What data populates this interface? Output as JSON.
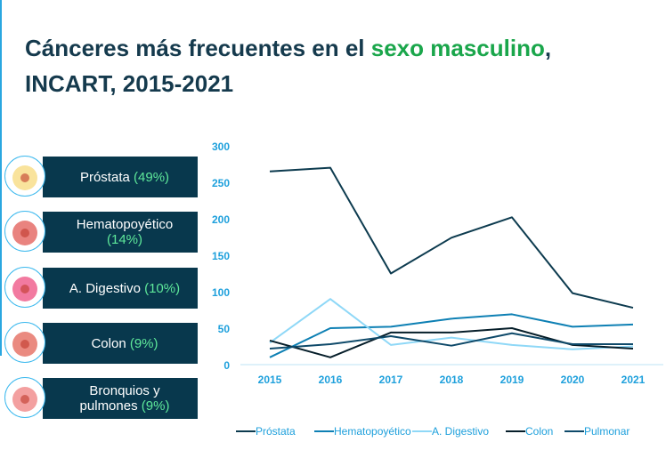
{
  "title": {
    "part1": "Cánceres más frecuentes en el ",
    "highlight": "sexo masculino",
    "part2": ",",
    "line2": "INCART, 2015-2021"
  },
  "cards": [
    {
      "label": "Próstata",
      "pct": "(49%)",
      "icon": "prostate-icon"
    },
    {
      "label": "Hematopoyético",
      "pct": "(14%)",
      "icon": "bone-marrow-icon"
    },
    {
      "label": "A. Digestivo",
      "pct": "(10%)",
      "icon": "bacteria-icon"
    },
    {
      "label": "Colon",
      "pct": "(9%)",
      "icon": "colon-icon"
    },
    {
      "label": "Bronquios y pulmones",
      "pct": "(9%)",
      "icon": "stomach-icon"
    }
  ],
  "chart_data": {
    "type": "line",
    "categories": [
      "2015",
      "2016",
      "2017",
      "2018",
      "2019",
      "2020",
      "2021"
    ],
    "ylim": [
      0,
      300
    ],
    "yticks": [
      "0",
      "50",
      "100",
      "150",
      "200",
      "250",
      "300"
    ],
    "grid": false,
    "legend_position": "bottom",
    "series": [
      {
        "name": "Próstata",
        "color": "#0d3b4f",
        "values": [
          265,
          270,
          125,
          174,
          202,
          98,
          78
        ]
      },
      {
        "name": "Hematopoyético",
        "color": "#0e80b4",
        "values": [
          10,
          50,
          52,
          63,
          69,
          52,
          55
        ]
      },
      {
        "name": "A. Digestivo",
        "color": "#8fd8f7",
        "values": [
          30,
          90,
          27,
          37,
          27,
          21,
          25
        ]
      },
      {
        "name": "Colon",
        "color": "#061e2a",
        "values": [
          33,
          10,
          44,
          44,
          50,
          27,
          22
        ]
      },
      {
        "name": "Pulmonar",
        "color": "#0f4a6a",
        "values": [
          22,
          28,
          39,
          26,
          43,
          28,
          28
        ]
      }
    ]
  }
}
